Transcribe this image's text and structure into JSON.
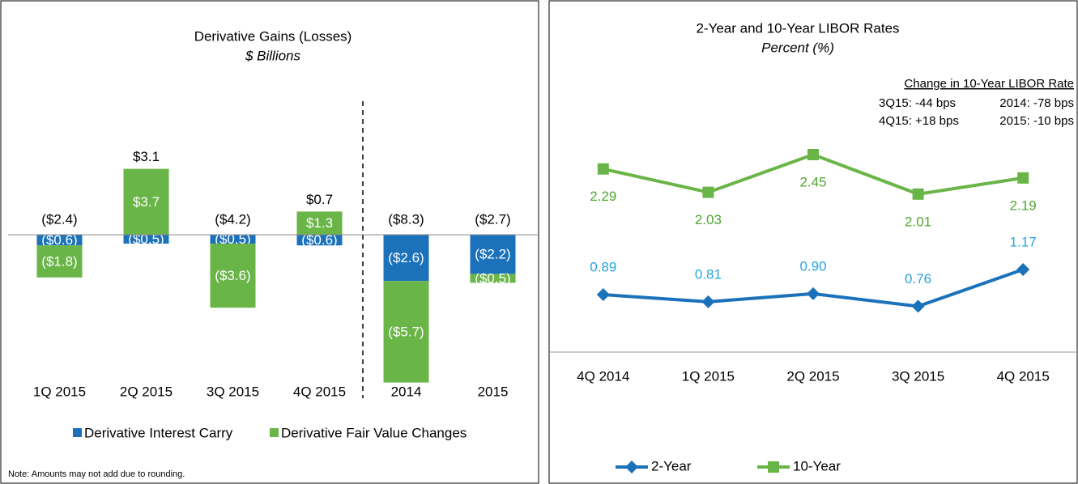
{
  "chart_data": [
    {
      "type": "bar",
      "title": "Derivative Gains (Losses)",
      "subtitle": "$ Billions",
      "categories": [
        "1Q 2015",
        "2Q 2015",
        "3Q 2015",
        "4Q 2015",
        "2014",
        "2015"
      ],
      "series": [
        {
          "name": "Derivative Interest Carry",
          "color": "#1b72bb",
          "values": [
            -0.6,
            -0.5,
            -0.5,
            -0.6,
            -2.6,
            -2.2
          ],
          "value_labels": [
            "($0.6)",
            "($0.5)",
            "($0.5)",
            "($0.6)",
            "($2.6)",
            "($2.2)"
          ]
        },
        {
          "name": "Derivative Fair Value Changes",
          "color": "#6ab547",
          "values": [
            -1.8,
            3.7,
            -3.6,
            1.3,
            -5.7,
            -0.5
          ],
          "value_labels": [
            "($1.8)",
            "$3.7",
            "($3.6)",
            "$1.3",
            "($5.7)",
            "($0.5)"
          ]
        }
      ],
      "totals": [
        -2.4,
        3.1,
        -4.2,
        0.7,
        -8.3,
        -2.7
      ],
      "total_labels": [
        "($2.4)",
        "$3.1",
        "($4.2)",
        "$0.7",
        "($8.3)",
        "($2.7)"
      ],
      "ylim": [
        -8.5,
        4.5
      ],
      "note": "Note:  Amounts may not add due to rounding."
    },
    {
      "type": "line",
      "title": "2-Year and 10-Year LIBOR Rates",
      "subtitle": "Percent (%)",
      "categories": [
        "4Q 2014",
        "1Q 2015",
        "2Q 2015",
        "3Q 2015",
        "4Q 2015"
      ],
      "series": [
        {
          "name": "2-Year",
          "color": "#1b72bb",
          "label_color": "#27a4dd",
          "marker": "diamond",
          "values": [
            0.89,
            0.81,
            0.9,
            0.76,
            1.17
          ],
          "value_labels": [
            "0.89",
            "0.81",
            "0.90",
            "0.76",
            "1.17"
          ]
        },
        {
          "name": "10-Year",
          "color": "#6ab547",
          "label_color": "#4ea72e",
          "marker": "square",
          "values": [
            2.29,
            2.03,
            2.45,
            2.01,
            2.19
          ]
        }
      ],
      "ylim": [
        0.25,
        3
      ],
      "annotation": {
        "title": "Change in 10-Year LIBOR Rate",
        "rows": [
          [
            "3Q15: -44 bps",
            "2014: -78 bps"
          ],
          [
            "4Q15: +18 bps",
            "2015: -10 bps"
          ]
        ]
      }
    }
  ]
}
